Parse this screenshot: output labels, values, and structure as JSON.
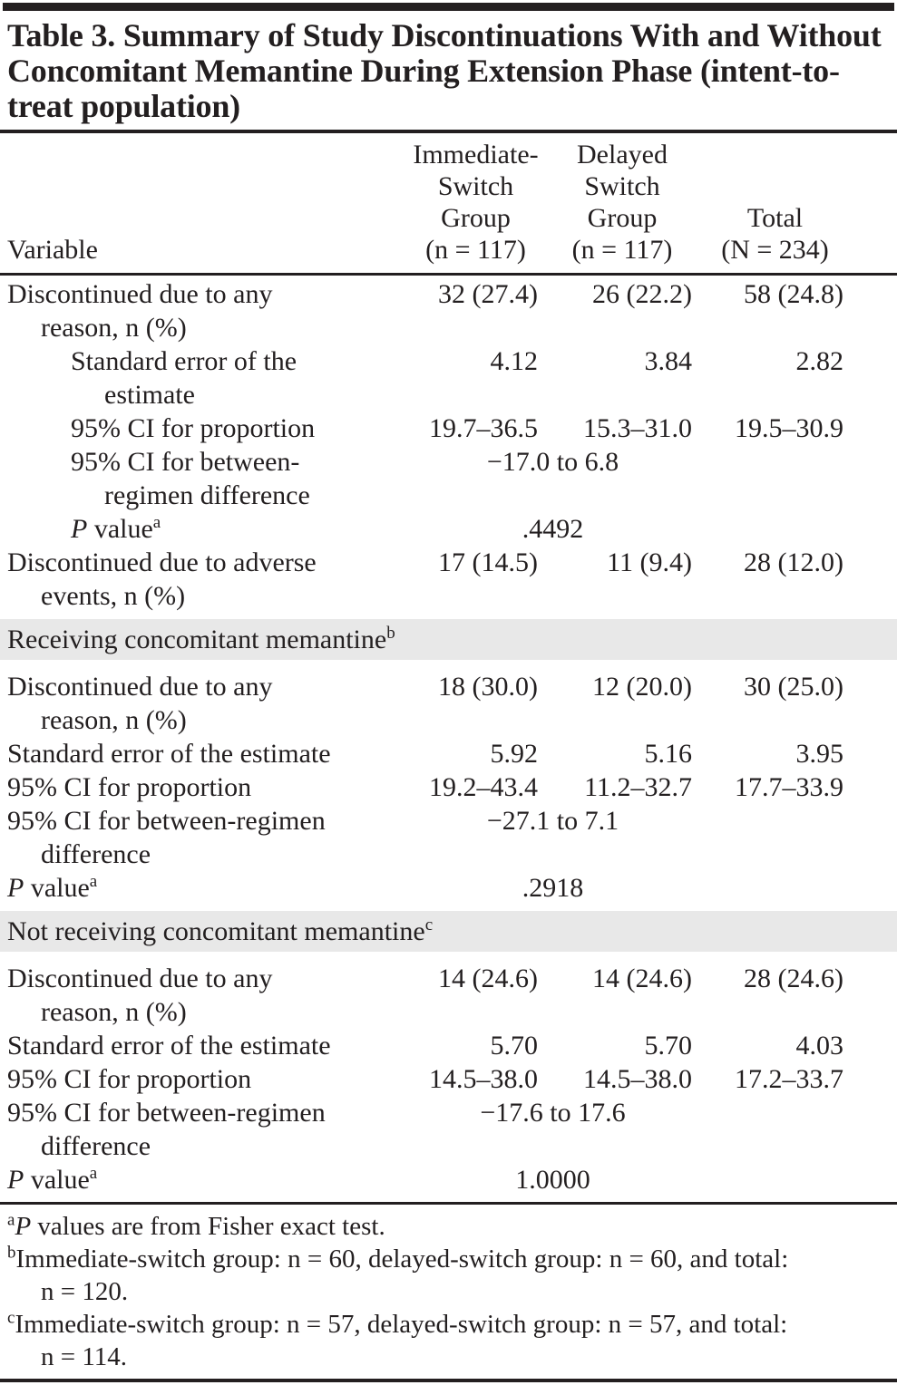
{
  "colors": {
    "text": "#231f20",
    "section_band": "#e8e8e8",
    "background": "#ffffff"
  },
  "table": {
    "title": "Table 3. Summary of Study Discontinuations With and Without Concomitant Memantine During Extension Phase (intent-to-treat population)",
    "header": {
      "variable": "Variable",
      "immediate": "Immediate-\nSwitch\nGroup\n(n = 117)",
      "delayed": "Delayed\nSwitch\nGroup\n(n = 117)",
      "total": "Total\n(N = 234)"
    },
    "rows": [
      {
        "type": "data",
        "label": "Discontinued due to any\nreason, n (%)",
        "v1": "32 (27.4)",
        "v2": "26 (22.2)",
        "v3": "58 (24.8)"
      },
      {
        "type": "data",
        "label": "Standard error of the\nestimate",
        "v1": "4.12",
        "v2": "3.84",
        "v3": "2.82"
      },
      {
        "type": "data",
        "label": "95% CI for proportion",
        "v1": "19.7–36.5",
        "v2": "15.3–31.0",
        "v3": "19.5–30.9"
      },
      {
        "type": "span",
        "label": "95% CI for between-\nregimen difference",
        "value": "−17.0 to 6.8"
      },
      {
        "type": "pvalue",
        "label_italic": "P",
        "label_text": " value",
        "label_sup": "a",
        "value": ".4492"
      },
      {
        "type": "data",
        "label": "Discontinued due to adverse\nevents, n (%)",
        "v1": "17 (14.5)",
        "v2": "11 (9.4)",
        "v3": "28 (12.0)"
      },
      {
        "type": "section",
        "text": "Receiving concomitant memantine",
        "sup": "b"
      },
      {
        "type": "data",
        "label": "Discontinued due to any\nreason, n (%)",
        "v1": "18 (30.0)",
        "v2": "12 (20.0)",
        "v3": "30 (25.0)"
      },
      {
        "type": "data",
        "label": "Standard error of the estimate",
        "v1": "5.92",
        "v2": "5.16",
        "v3": "3.95"
      },
      {
        "type": "data",
        "label": "95% CI for proportion",
        "v1": "19.2–43.4",
        "v2": "11.2–32.7",
        "v3": "17.7–33.9"
      },
      {
        "type": "span",
        "label": "95% CI for between-regimen\ndifference",
        "value": "−27.1 to 7.1"
      },
      {
        "type": "pvalue",
        "label_italic": "P",
        "label_text": " value",
        "label_sup": "a",
        "value": ".2918"
      },
      {
        "type": "section",
        "text": "Not receiving concomitant memantine",
        "sup": "c"
      },
      {
        "type": "data",
        "label": "Discontinued due to any\nreason, n (%)",
        "v1": "14 (24.6)",
        "v2": "14 (24.6)",
        "v3": "28 (24.6)"
      },
      {
        "type": "data",
        "label": "Standard error of the estimate",
        "v1": "5.70",
        "v2": "5.70",
        "v3": "4.03"
      },
      {
        "type": "data",
        "label": "95% CI for proportion",
        "v1": "14.5–38.0",
        "v2": "14.5–38.0",
        "v3": "17.2–33.7"
      },
      {
        "type": "span",
        "label": "95% CI for between-regimen\ndifference",
        "value": "−17.6 to 17.6"
      },
      {
        "type": "pvalue",
        "label_italic": "P",
        "label_text": " value",
        "label_sup": "a",
        "value": "1.0000"
      }
    ]
  },
  "footnotes": {
    "a": {
      "sup": "a",
      "italic": "P",
      "text": " values are from Fisher exact test."
    },
    "b": {
      "sup": "b",
      "text": "Immediate-switch group: n = 60, delayed-switch group: n = 60, and total:\nn = 120."
    },
    "c": {
      "sup": "c",
      "text": "Immediate-switch group: n = 57, delayed-switch group: n = 57, and total:\nn = 114."
    }
  }
}
